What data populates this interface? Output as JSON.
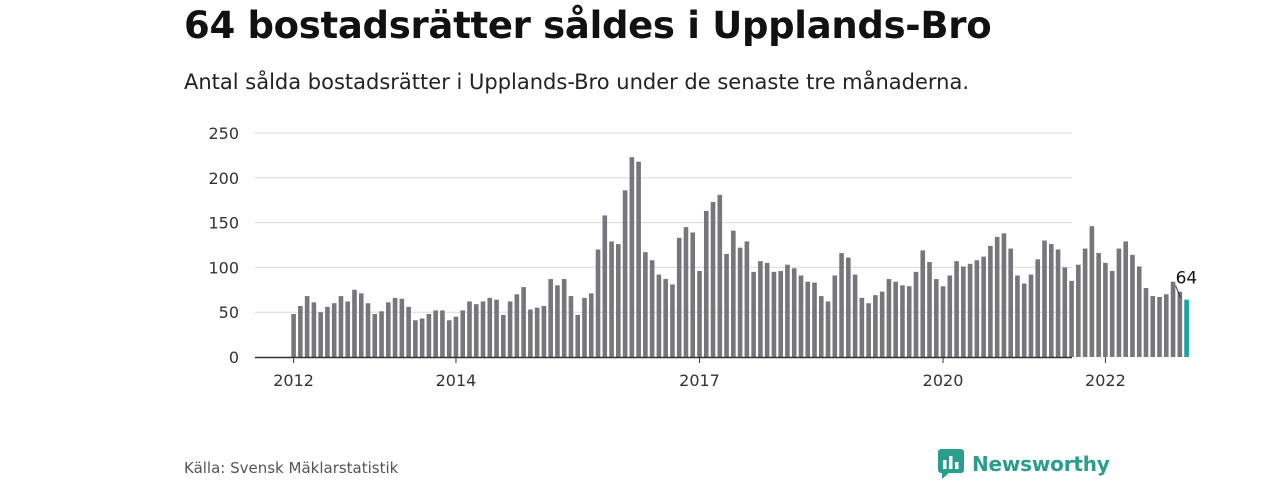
{
  "header": {
    "title": "64 bostadsrätter såldes i Upplands-Bro",
    "subtitle": "Antal sålda bostadsrätter i Upplands-Bro under de senaste tre månaderna."
  },
  "footer": {
    "source": "Källa: Svensk Mäklarstatistik",
    "brand": "Newsworthy",
    "brand_icon": "bar-chart-speech-bubble-icon"
  },
  "colors": {
    "bar": "#77767b",
    "highlight": "#1aa39a",
    "grid": "#d9d9d9",
    "axis": "#333333",
    "brand": "#2a9d8f"
  },
  "chart_data": {
    "type": "bar",
    "title": "64 bostadsrätter såldes i Upplands-Bro",
    "subtitle": "Antal sålda bostadsrätter i Upplands-Bro under de senaste tre månaderna.",
    "xlabel": "",
    "ylabel": "",
    "ylim": [
      0,
      250
    ],
    "y_ticks": [
      0,
      50,
      100,
      150,
      200,
      250
    ],
    "x_ticks": [
      "2012",
      "2014",
      "2017",
      "2020",
      "2022"
    ],
    "x_tick_dates": [
      "2012-01",
      "2014-01",
      "2017-01",
      "2020-01",
      "2022-01"
    ],
    "grid": true,
    "start_month": "2012-01",
    "end_month": "2023-03",
    "highlight_label": "64",
    "values": [
      48,
      57,
      68,
      61,
      50,
      56,
      60,
      68,
      62,
      75,
      71,
      60,
      48,
      51,
      61,
      66,
      65,
      56,
      41,
      43,
      48,
      52,
      52,
      41,
      45,
      52,
      62,
      59,
      62,
      66,
      64,
      47,
      62,
      70,
      78,
      53,
      55,
      57,
      87,
      80,
      87,
      68,
      47,
      66,
      71,
      120,
      158,
      129,
      126,
      186,
      223,
      218,
      117,
      108,
      92,
      87,
      81,
      133,
      145,
      139,
      96,
      163,
      173,
      181,
      115,
      141,
      122,
      129,
      95,
      107,
      105,
      95,
      96,
      103,
      99,
      91,
      84,
      83,
      68,
      62,
      91,
      116,
      111,
      92,
      66,
      60,
      69,
      73,
      87,
      84,
      80,
      79,
      95,
      119,
      106,
      87,
      79,
      91,
      107,
      101,
      104,
      108,
      112,
      124,
      134,
      138,
      121,
      91,
      82,
      92,
      109,
      130,
      126,
      120,
      100,
      85,
      103,
      121,
      146,
      116,
      105,
      96,
      121,
      129,
      114,
      101,
      77,
      68,
      67,
      70,
      84,
      73,
      64
    ]
  }
}
